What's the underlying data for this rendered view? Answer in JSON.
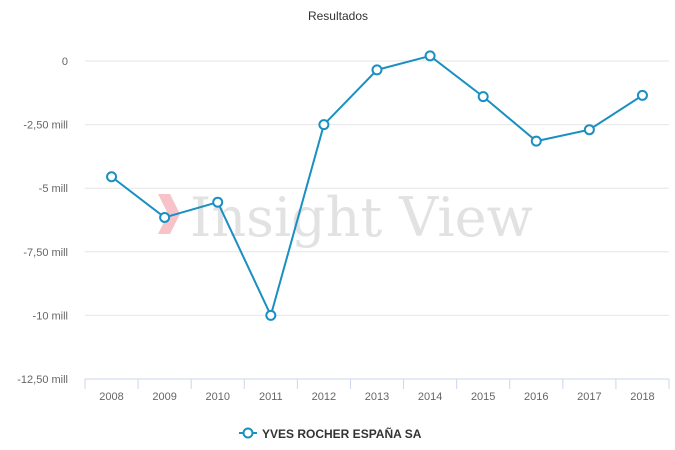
{
  "chart_data": {
    "type": "line",
    "title": "Resultados",
    "categories": [
      "2008",
      "2009",
      "2010",
      "2011",
      "2012",
      "2013",
      "2014",
      "2015",
      "2016",
      "2017",
      "2018"
    ],
    "series": [
      {
        "name": "YVES ROCHER ESPAÑA SA",
        "color": "#1a8fc1",
        "values": [
          -4.55,
          -6.15,
          -5.55,
          -10.0,
          -2.5,
          -0.35,
          0.2,
          -1.4,
          -3.15,
          -2.7,
          -1.35
        ]
      }
    ],
    "ylim": [
      -12.5,
      0
    ],
    "yticks": [
      0,
      -2.5,
      -5,
      -7.5,
      -10,
      -12.5
    ],
    "ytick_labels": [
      "0",
      "-2,50 mill",
      "-5 mill",
      "-7,50 mill",
      "-10 mill",
      "-12,50 mill"
    ],
    "grid": true,
    "legend": "bottom-center"
  },
  "watermark": {
    "text": "Insight View",
    "icon": "chevron-logo-icon",
    "color": "#f4b6bd"
  }
}
